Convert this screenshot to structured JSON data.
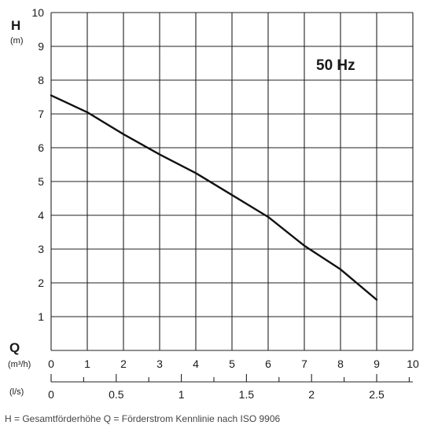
{
  "chart_data": {
    "type": "line",
    "frequency_label": "50 Hz",
    "y_axis": {
      "symbol": "H",
      "unit": "(m)",
      "ticks": [
        "1",
        "2",
        "3",
        "4",
        "5",
        "6",
        "7",
        "8",
        "9",
        "10"
      ],
      "ylim": [
        0,
        10
      ]
    },
    "x_axis_primary": {
      "symbol": "Q",
      "unit": "(m³/h)",
      "ticks": [
        "0",
        "1",
        "2",
        "3",
        "4",
        "5",
        "6",
        "7",
        "8",
        "9",
        "10"
      ],
      "xlim": [
        0,
        10
      ]
    },
    "x_axis_secondary": {
      "unit": "(l/s)",
      "ticks": [
        "0",
        "0.5",
        "1",
        "1.5",
        "2",
        "2.5"
      ],
      "xlim": [
        0,
        2.7778
      ]
    },
    "grid": true,
    "series": [
      {
        "x": [
          0,
          1,
          2,
          3,
          4,
          5,
          6,
          7,
          8,
          9
        ],
        "y": [
          7.55,
          7.05,
          6.4,
          5.8,
          5.25,
          4.6,
          3.95,
          3.1,
          2.4,
          1.5
        ]
      }
    ],
    "caption": "H = Gesamtförderhöhe   Q = Förderstrom  Kennlinie nach  ISO 9906"
  },
  "colors": {
    "line": "#111111",
    "grid": "#222222",
    "text": "#1a1a1a"
  }
}
